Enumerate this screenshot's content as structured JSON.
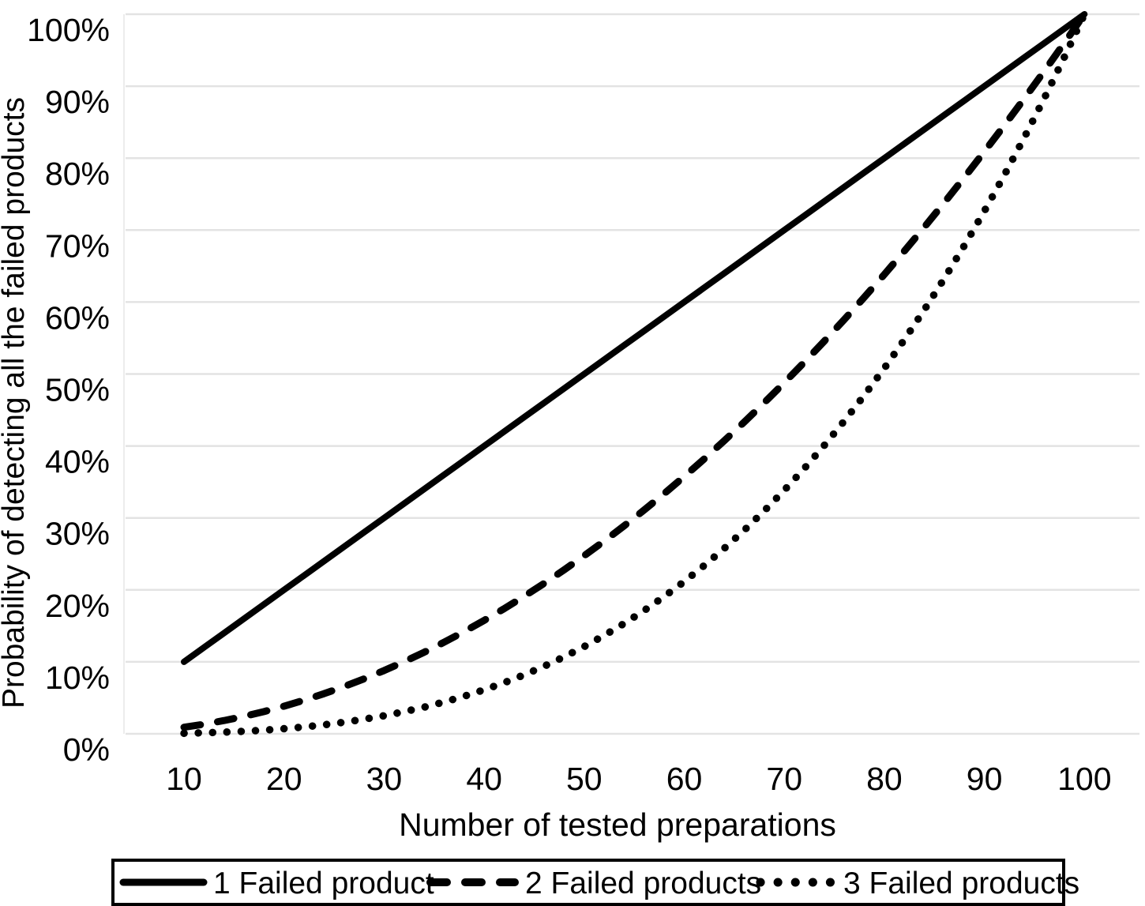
{
  "colors": {
    "background": "#ffffff",
    "line": "#000000",
    "grid": "#e3e3e3",
    "axis_line": "#ececec",
    "legend_border": "#000000",
    "legend_background": "#ffffff"
  },
  "chart_data": {
    "type": "line",
    "title": "",
    "xlabel": "Number of tested preparations",
    "ylabel": "Probability of detecting all the failed products",
    "x_ticks": [
      10,
      20,
      30,
      40,
      50,
      60,
      70,
      80,
      90,
      100
    ],
    "y_ticks": [
      "0%",
      "10%",
      "20%",
      "30%",
      "40%",
      "50%",
      "60%",
      "70%",
      "80%",
      "90%",
      "100%"
    ],
    "y_tick_values": [
      0,
      10,
      20,
      30,
      40,
      50,
      60,
      70,
      80,
      90,
      100
    ],
    "xlim": [
      4,
      105.5
    ],
    "ylim": [
      0,
      100
    ],
    "grid": "horizontal",
    "legend_position": "bottom-outside",
    "x": [
      10,
      12,
      14,
      16,
      18,
      20,
      22,
      24,
      26,
      28,
      30,
      32,
      34,
      36,
      38,
      40,
      42,
      44,
      46,
      48,
      50,
      52,
      54,
      56,
      58,
      60,
      62,
      64,
      66,
      68,
      70,
      72,
      74,
      76,
      78,
      80,
      82,
      84,
      86,
      88,
      90,
      92,
      94,
      96,
      98,
      100
    ],
    "series": [
      {
        "name": "1 Failed product",
        "line_style": "solid",
        "values": [
          10,
          12,
          14,
          16,
          18,
          20,
          22,
          24,
          26,
          28,
          30,
          32,
          34,
          36,
          38,
          40,
          42,
          44,
          46,
          48,
          50,
          52,
          54,
          56,
          58,
          60,
          62,
          64,
          66,
          68,
          70,
          72,
          74,
          76,
          78,
          80,
          82,
          84,
          86,
          88,
          90,
          92,
          94,
          96,
          98,
          100
        ]
      },
      {
        "name": "2 Failed products",
        "line_style": "dashed",
        "values": [
          0.91,
          1.33,
          1.84,
          2.42,
          3.09,
          3.84,
          4.67,
          5.58,
          6.57,
          7.64,
          8.79,
          10.02,
          11.33,
          12.73,
          14.2,
          15.76,
          17.39,
          19.11,
          20.91,
          22.79,
          24.75,
          26.79,
          28.91,
          31.11,
          33.39,
          35.76,
          38.2,
          40.73,
          43.33,
          46.02,
          48.79,
          51.64,
          54.57,
          57.58,
          60.67,
          63.84,
          67.09,
          70.42,
          73.84,
          77.33,
          80.91,
          84.57,
          88.3,
          92.12,
          96.02,
          100
        ]
      },
      {
        "name": "3 Failed products",
        "line_style": "dotted",
        "values": [
          0.07,
          0.14,
          0.23,
          0.35,
          0.5,
          0.71,
          0.95,
          1.25,
          1.61,
          2.03,
          2.51,
          3.07,
          3.7,
          4.42,
          5.22,
          6.11,
          7.1,
          8.19,
          9.39,
          10.7,
          12.12,
          13.67,
          15.34,
          17.14,
          19.08,
          21.16,
          23.39,
          25.77,
          28.3,
          30.99,
          33.85,
          36.88,
          40.09,
          43.48,
          47.05,
          50.81,
          54.77,
          58.93,
          63.29,
          67.86,
          72.65,
          77.66,
          82.9,
          88.36,
          94.06,
          100
        ]
      }
    ]
  },
  "legend": {
    "items": [
      {
        "label": "1 Failed product",
        "style": "solid"
      },
      {
        "label": "2 Failed products",
        "style": "dashed"
      },
      {
        "label": "3 Failed products",
        "style": "dotted"
      }
    ]
  }
}
